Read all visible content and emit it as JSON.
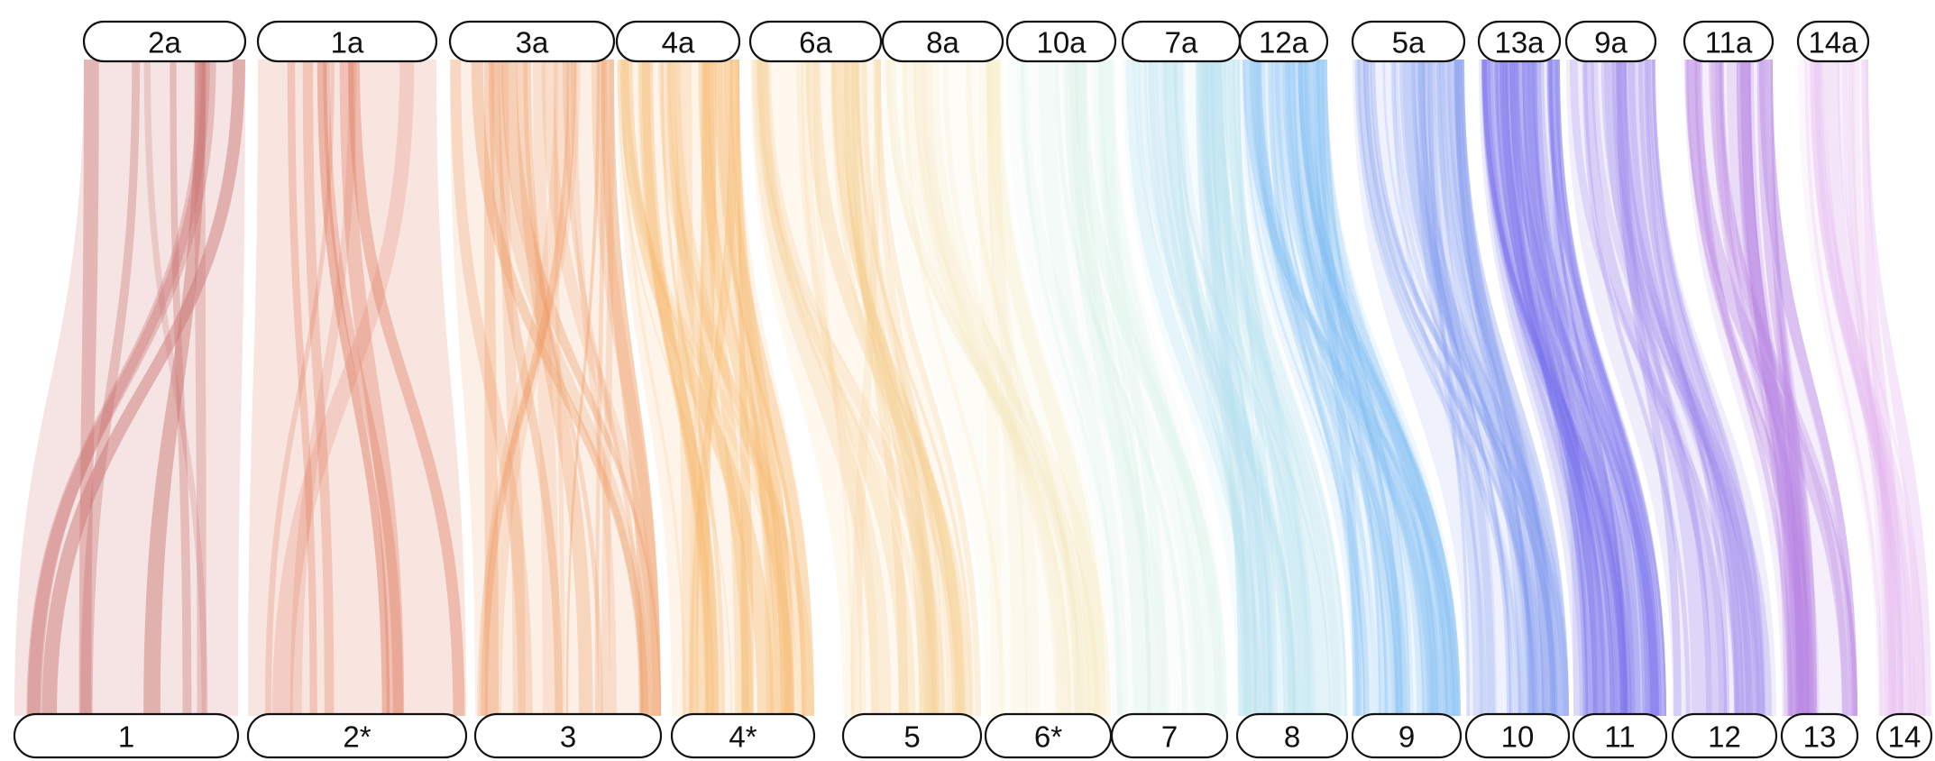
{
  "top_labels": [
    {
      "label": "2a",
      "color": "#c9706d"
    },
    {
      "label": "1a",
      "color": "#de7a5c"
    },
    {
      "label": "3a",
      "color": "#ee9a62"
    },
    {
      "label": "4a",
      "color": "#f7ba70"
    },
    {
      "label": "6a",
      "color": "#f6cc8c"
    },
    {
      "label": "8a",
      "color": "#f4e6b4"
    },
    {
      "label": "10a",
      "color": "#cfeee0"
    },
    {
      "label": "7a",
      "color": "#b3e0ef"
    },
    {
      "label": "12a",
      "color": "#7fbdf3"
    },
    {
      "label": "5a",
      "color": "#7e98ef"
    },
    {
      "label": "13a",
      "color": "#7870ec"
    },
    {
      "label": "9a",
      "color": "#9c86ec"
    },
    {
      "label": "11a",
      "color": "#b885e4"
    },
    {
      "label": "14a",
      "color": "#e3b4ef"
    }
  ],
  "bottom_labels": [
    {
      "label": "1"
    },
    {
      "label": "2*"
    },
    {
      "label": "3"
    },
    {
      "label": "4*"
    },
    {
      "label": "5"
    },
    {
      "label": "6*"
    },
    {
      "label": "7"
    },
    {
      "label": "8"
    },
    {
      "label": "9"
    },
    {
      "label": "10"
    },
    {
      "label": "11"
    },
    {
      "label": "12"
    },
    {
      "label": "13"
    },
    {
      "label": "14"
    }
  ]
}
